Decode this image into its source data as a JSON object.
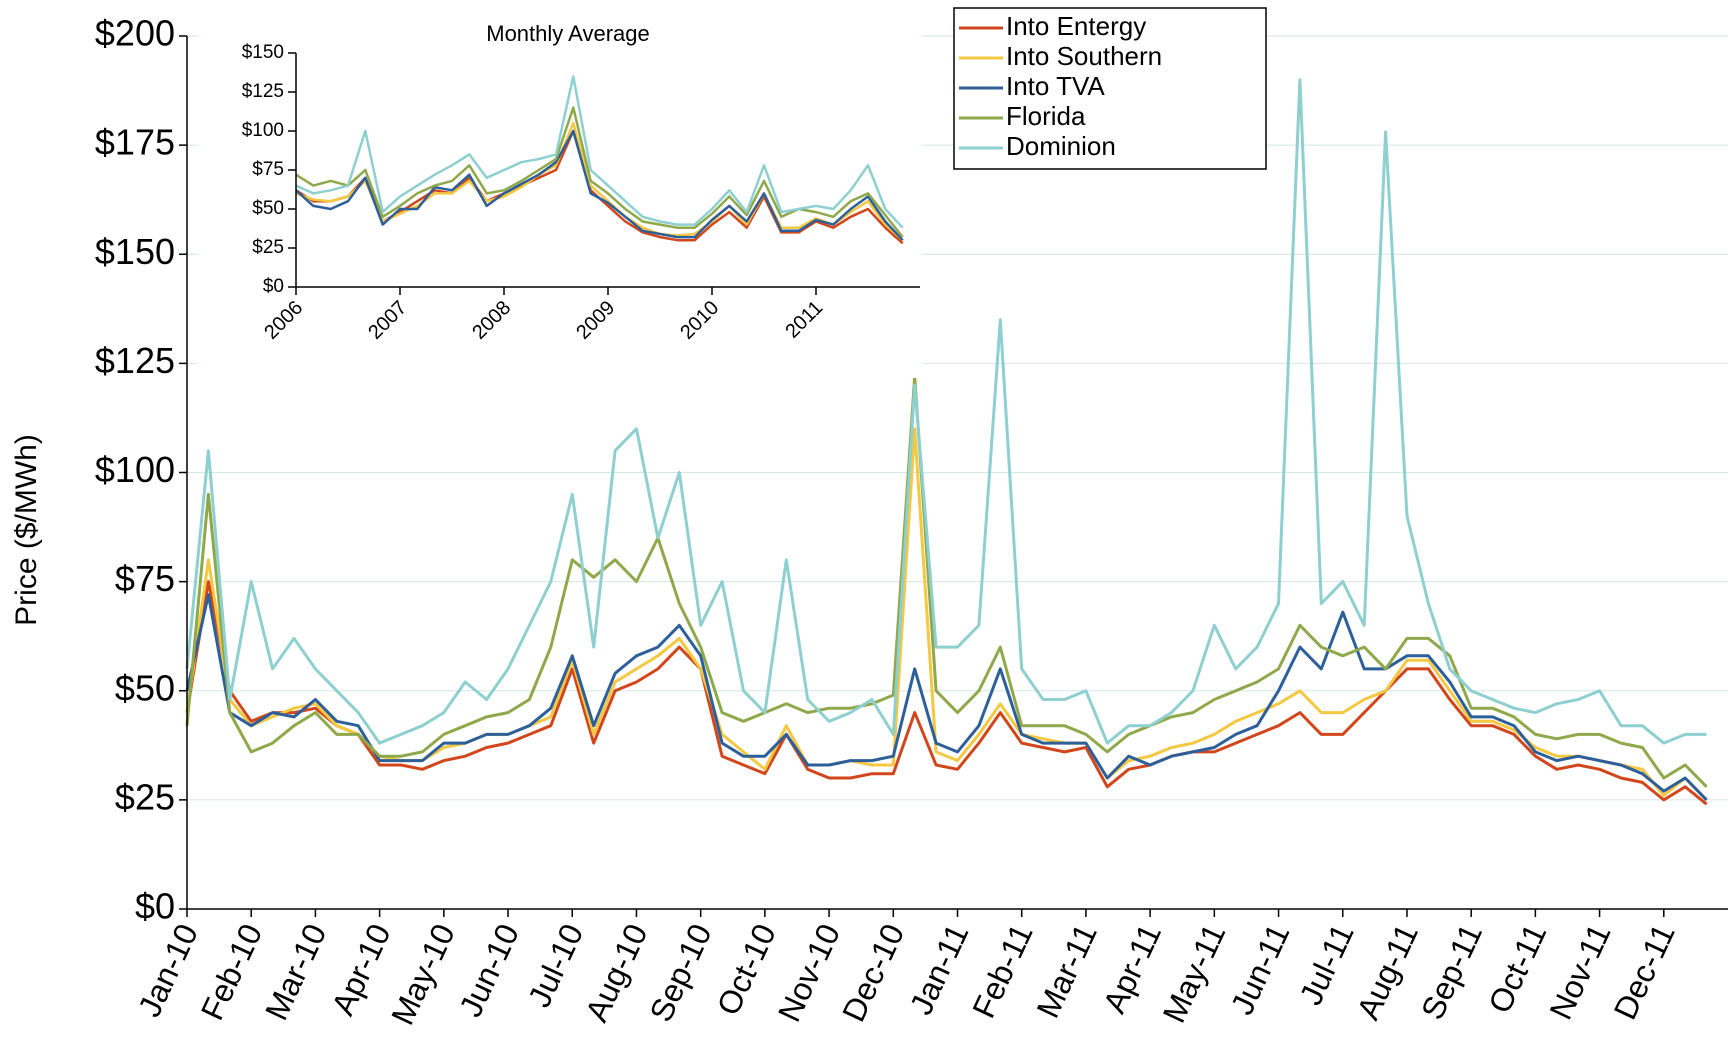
{
  "chart_data": [
    {
      "type": "line",
      "y_label": "Price ($/MWh)",
      "categories": [
        "Jan-10",
        null,
        null,
        "Feb-10",
        null,
        null,
        "Mar-10",
        null,
        null,
        "Apr-10",
        null,
        null,
        "May-10",
        null,
        null,
        "Jun-10",
        null,
        null,
        "Jul-10",
        null,
        null,
        "Aug-10",
        null,
        null,
        "Sep-10",
        null,
        null,
        "Oct-10",
        null,
        null,
        "Nov-10",
        null,
        null,
        "Dec-10",
        null,
        null,
        "Jan-11",
        null,
        null,
        "Feb-11",
        null,
        null,
        "Mar-11",
        null,
        null,
        "Apr-11",
        null,
        null,
        "May-11",
        null,
        null,
        "Jun-11",
        null,
        null,
        "Jul-11",
        null,
        null,
        "Aug-11",
        null,
        null,
        "Sep-11",
        null,
        null,
        "Oct-11",
        null,
        null,
        "Nov-11",
        null,
        null,
        "Dec-11",
        null,
        null
      ],
      "series": [
        {
          "name": "Into Entergy",
          "color": "#d2461c",
          "values": [
            45,
            75,
            50,
            43,
            45,
            45,
            46,
            42,
            40,
            33,
            33,
            32,
            34,
            35,
            37,
            38,
            40,
            42,
            55,
            38,
            50,
            52,
            55,
            60,
            55,
            35,
            33,
            31,
            40,
            32,
            30,
            30,
            31,
            31,
            45,
            33,
            32,
            38,
            45,
            38,
            37,
            36,
            37,
            28,
            32,
            33,
            35,
            36,
            36,
            38,
            40,
            42,
            45,
            40,
            40,
            45,
            50,
            55,
            55,
            48,
            42,
            42,
            40,
            35,
            32,
            33,
            32,
            30,
            29,
            25,
            28,
            24
          ]
        },
        {
          "name": "Into Southern",
          "color": "#f5c842",
          "values": [
            45,
            80,
            48,
            42,
            44,
            46,
            47,
            42,
            40,
            35,
            34,
            34,
            37,
            38,
            40,
            40,
            42,
            44,
            57,
            40,
            52,
            55,
            58,
            62,
            55,
            40,
            36,
            32,
            42,
            33,
            33,
            34,
            33,
            33,
            110,
            36,
            34,
            40,
            47,
            40,
            39,
            38,
            38,
            30,
            34,
            35,
            37,
            38,
            40,
            43,
            45,
            47,
            50,
            45,
            45,
            48,
            50,
            57,
            57,
            50,
            43,
            43,
            41,
            37,
            35,
            35,
            34,
            33,
            32,
            26,
            30,
            25
          ]
        },
        {
          "name": "Into TVA",
          "color": "#2d5f9a",
          "values": [
            50,
            72,
            45,
            42,
            45,
            44,
            48,
            43,
            42,
            34,
            34,
            34,
            38,
            38,
            40,
            40,
            42,
            46,
            58,
            42,
            54,
            58,
            60,
            65,
            58,
            38,
            35,
            35,
            40,
            33,
            33,
            34,
            34,
            35,
            55,
            38,
            36,
            42,
            55,
            40,
            38,
            38,
            38,
            30,
            35,
            33,
            35,
            36,
            37,
            40,
            42,
            50,
            60,
            55,
            68,
            55,
            55,
            58,
            58,
            52,
            44,
            44,
            42,
            36,
            34,
            35,
            34,
            33,
            31,
            27,
            30,
            25
          ]
        },
        {
          "name": "Florida",
          "color": "#8fa84a",
          "values": [
            42,
            95,
            45,
            36,
            38,
            42,
            45,
            40,
            40,
            35,
            35,
            36,
            40,
            42,
            44,
            45,
            48,
            60,
            80,
            76,
            80,
            75,
            85,
            70,
            60,
            45,
            43,
            45,
            47,
            45,
            46,
            46,
            47,
            49,
            122,
            50,
            45,
            50,
            60,
            42,
            42,
            42,
            40,
            36,
            40,
            42,
            44,
            45,
            48,
            50,
            52,
            55,
            65,
            60,
            58,
            60,
            55,
            62,
            62,
            58,
            46,
            46,
            44,
            40,
            39,
            40,
            40,
            38,
            37,
            30,
            33,
            28
          ]
        },
        {
          "name": "Dominion",
          "color": "#8ecfcf",
          "values": [
            55,
            105,
            48,
            75,
            55,
            62,
            55,
            50,
            45,
            38,
            40,
            42,
            45,
            52,
            48,
            55,
            65,
            75,
            95,
            60,
            105,
            110,
            85,
            100,
            65,
            75,
            50,
            45,
            80,
            48,
            43,
            45,
            48,
            40,
            120,
            60,
            60,
            65,
            135,
            55,
            48,
            48,
            50,
            38,
            42,
            42,
            45,
            50,
            65,
            55,
            60,
            70,
            190,
            70,
            75,
            65,
            178,
            90,
            70,
            55,
            50,
            48,
            46,
            45,
            47,
            48,
            50,
            42,
            42,
            38,
            40,
            40
          ]
        }
      ],
      "ylim": [
        0,
        200
      ],
      "yticks": [
        {
          "value": 0,
          "label": "$0"
        },
        {
          "value": 25,
          "label": "$25"
        },
        {
          "value": 50,
          "label": "$50"
        },
        {
          "value": 75,
          "label": "$75"
        },
        {
          "value": 100,
          "label": "$100"
        },
        {
          "value": 125,
          "label": "$125"
        },
        {
          "value": 150,
          "label": "$150"
        },
        {
          "value": 175,
          "label": "$175"
        },
        {
          "value": 200,
          "label": "$200"
        }
      ],
      "grid": true
    },
    {
      "type": "line",
      "title": "Monthly Average",
      "categories": [
        "2006",
        null,
        null,
        null,
        null,
        null,
        "2007",
        null,
        null,
        null,
        null,
        null,
        "2008",
        null,
        null,
        null,
        null,
        null,
        "2009",
        null,
        null,
        null,
        null,
        null,
        "2010",
        null,
        null,
        null,
        null,
        null,
        "2011",
        null,
        null,
        null,
        null,
        null
      ],
      "series": [
        {
          "color": "#d2461c",
          "values": [
            62,
            55,
            55,
            58,
            70,
            42,
            48,
            55,
            62,
            60,
            70,
            55,
            60,
            65,
            70,
            75,
            100,
            62,
            52,
            42,
            35,
            32,
            30,
            30,
            40,
            48,
            38,
            58,
            35,
            35,
            42,
            38,
            45,
            50,
            38,
            28
          ]
        },
        {
          "color": "#f5c842",
          "values": [
            60,
            56,
            55,
            58,
            68,
            42,
            47,
            52,
            60,
            60,
            68,
            55,
            58,
            64,
            72,
            78,
            105,
            65,
            55,
            45,
            38,
            34,
            33,
            34,
            42,
            52,
            40,
            60,
            38,
            38,
            44,
            40,
            48,
            55,
            40,
            30
          ]
        },
        {
          "color": "#2d5f9a",
          "values": [
            62,
            52,
            50,
            55,
            70,
            40,
            50,
            50,
            64,
            62,
            72,
            52,
            60,
            66,
            72,
            80,
            100,
            60,
            54,
            45,
            36,
            34,
            32,
            32,
            43,
            52,
            42,
            60,
            36,
            36,
            43,
            40,
            50,
            58,
            42,
            30
          ]
        },
        {
          "color": "#8fa84a",
          "values": [
            72,
            65,
            68,
            65,
            75,
            45,
            52,
            60,
            65,
            68,
            78,
            60,
            62,
            68,
            75,
            82,
            115,
            68,
            60,
            50,
            42,
            40,
            38,
            38,
            47,
            58,
            46,
            68,
            45,
            50,
            48,
            45,
            55,
            60,
            46,
            32
          ]
        },
        {
          "color": "#8ecfcf",
          "values": [
            65,
            60,
            62,
            65,
            100,
            48,
            58,
            65,
            72,
            78,
            85,
            70,
            75,
            80,
            82,
            85,
            135,
            75,
            65,
            55,
            45,
            42,
            40,
            40,
            50,
            62,
            48,
            78,
            48,
            50,
            52,
            50,
            62,
            78,
            50,
            38
          ]
        }
      ],
      "ylim": [
        0,
        150
      ],
      "yticks": [
        {
          "value": 0,
          "label": "$0"
        },
        {
          "value": 25,
          "label": "$25"
        },
        {
          "value": 50,
          "label": "$50"
        },
        {
          "value": 75,
          "label": "$75"
        },
        {
          "value": 100,
          "label": "$100"
        },
        {
          "value": 125,
          "label": "$125"
        },
        {
          "value": 150,
          "label": "$150"
        }
      ],
      "grid": false
    }
  ]
}
